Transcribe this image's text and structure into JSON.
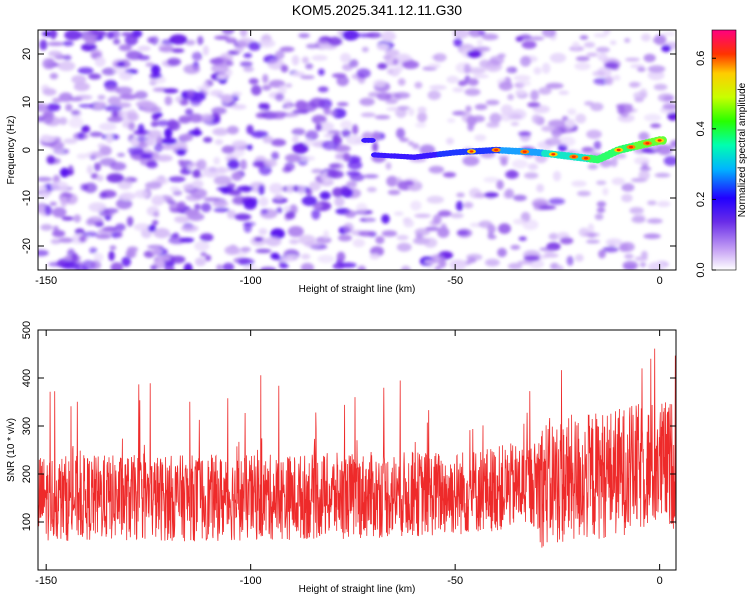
{
  "title": "KOM5.2025.341.12.11.G30",
  "chart_data": [
    {
      "type": "heatmap",
      "name": "spectrogram",
      "xlabel": "Height of straight line (km)",
      "ylabel": "Frequency (Hz)",
      "xlim": [
        -152,
        4
      ],
      "ylim": [
        -25,
        25
      ],
      "xticks": [
        -150,
        -100,
        -50,
        0
      ],
      "yticks": [
        -20,
        -10,
        0,
        10,
        20
      ],
      "colorbar": {
        "label": "Normalized spectral amplitude",
        "range": [
          0,
          0.68
        ],
        "ticks": [
          "0.0",
          "0.2",
          "0.4",
          "0.6"
        ],
        "tick_values": [
          0,
          0.2,
          0.4,
          0.6
        ]
      },
      "ridge": {
        "description_points_km_hz": [
          [
            -70,
            -1
          ],
          [
            -60,
            -1.5
          ],
          [
            -50,
            -0.5
          ],
          [
            -40,
            0
          ],
          [
            -30,
            -0.5
          ],
          [
            -20,
            -1.5
          ],
          [
            -15,
            -2
          ],
          [
            -10,
            0
          ],
          [
            -5,
            1
          ],
          [
            0,
            2
          ]
        ]
      }
    },
    {
      "type": "line",
      "name": "snr",
      "xlabel": "Height of straight line (km)",
      "ylabel": "SNR (10 * v/v)",
      "xlim": [
        -152,
        4
      ],
      "ylim": [
        0,
        500
      ],
      "xticks": [
        -150,
        -100,
        -50,
        0
      ],
      "yticks": [
        100,
        200,
        300,
        400,
        500
      ],
      "color": "#ee2a2a",
      "series_summary": {
        "baseline_mean": [
          [
            -150,
            150
          ],
          [
            -100,
            150
          ],
          [
            -50,
            160
          ],
          [
            -20,
            190
          ],
          [
            0,
            220
          ]
        ],
        "noise_amplitude": 90
      }
    }
  ]
}
